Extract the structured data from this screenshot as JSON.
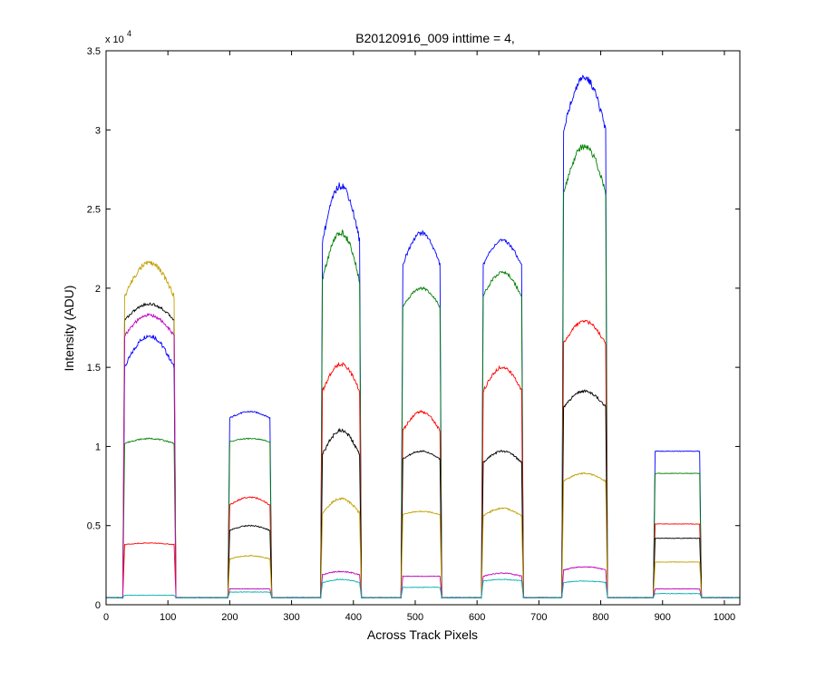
{
  "chart_data": {
    "type": "line",
    "title": "B20120916_009 inttime = 4,",
    "xlabel": "Across Track Pixels",
    "ylabel": "Intensity (ADU)",
    "y_multiplier_label": "x 10",
    "y_multiplier_exponent": "4",
    "xlim": [
      0,
      1025
    ],
    "ylim": [
      0,
      35000
    ],
    "x_ticks": [
      0,
      100,
      200,
      300,
      400,
      500,
      600,
      700,
      800,
      900,
      1000
    ],
    "y_ticks": [
      0,
      5000,
      10000,
      15000,
      20000,
      25000,
      30000,
      35000
    ],
    "y_tick_labels": [
      "0",
      "0.5",
      "1",
      "1.5",
      "2",
      "2.5",
      "3",
      "3.5"
    ],
    "grid": false,
    "legend": "none",
    "baseline": 450,
    "segments": [
      {
        "start": 30,
        "end": 110
      },
      {
        "start": 200,
        "end": 265
      },
      {
        "start": 350,
        "end": 410
      },
      {
        "start": 480,
        "end": 540
      },
      {
        "start": 610,
        "end": 672
      },
      {
        "start": 740,
        "end": 808
      },
      {
        "start": 888,
        "end": 960
      }
    ],
    "series": [
      {
        "color": "#0000ff",
        "plateaus": [
          [
            15000,
            17000
          ],
          [
            11800,
            12200
          ],
          [
            23000,
            26500
          ],
          [
            21500,
            23500
          ],
          [
            21500,
            23000
          ],
          [
            30000,
            33300
          ],
          [
            9700,
            9700
          ]
        ]
      },
      {
        "color": "#008000",
        "plateaus": [
          [
            10200,
            10500
          ],
          [
            10300,
            10500
          ],
          [
            20500,
            23500
          ],
          [
            18800,
            20000
          ],
          [
            19500,
            21000
          ],
          [
            26000,
            29000
          ],
          [
            8300,
            8300
          ]
        ]
      },
      {
        "color": "#ff0000",
        "plateaus": [
          [
            3800,
            3900
          ],
          [
            6300,
            6800
          ],
          [
            13500,
            15200
          ],
          [
            11000,
            12200
          ],
          [
            13500,
            15000
          ],
          [
            16500,
            17900
          ],
          [
            5100,
            5100
          ]
        ]
      },
      {
        "color": "#000000",
        "plateaus": [
          [
            18000,
            19000
          ],
          [
            4700,
            5000
          ],
          [
            9500,
            11000
          ],
          [
            9200,
            9700
          ],
          [
            9000,
            9700
          ],
          [
            12500,
            13500
          ],
          [
            4200,
            4200
          ]
        ]
      },
      {
        "color": "#c0a000",
        "plateaus": [
          [
            19500,
            21600
          ],
          [
            2900,
            3100
          ],
          [
            5800,
            6700
          ],
          [
            5700,
            5900
          ],
          [
            5600,
            6100
          ],
          [
            7800,
            8300
          ],
          [
            2700,
            2700
          ]
        ]
      },
      {
        "color": "#c000c0",
        "plateaus": [
          [
            17000,
            18300
          ],
          [
            1000,
            1000
          ],
          [
            1900,
            2100
          ],
          [
            1800,
            1800
          ],
          [
            1800,
            2000
          ],
          [
            2200,
            2400
          ],
          [
            1000,
            1000
          ]
        ]
      },
      {
        "color": "#00b0b0",
        "plateaus": [
          [
            600,
            600
          ],
          [
            800,
            800
          ],
          [
            1400,
            1600
          ],
          [
            1100,
            1100
          ],
          [
            1500,
            1600
          ],
          [
            1400,
            1500
          ],
          [
            700,
            700
          ]
        ]
      }
    ]
  }
}
